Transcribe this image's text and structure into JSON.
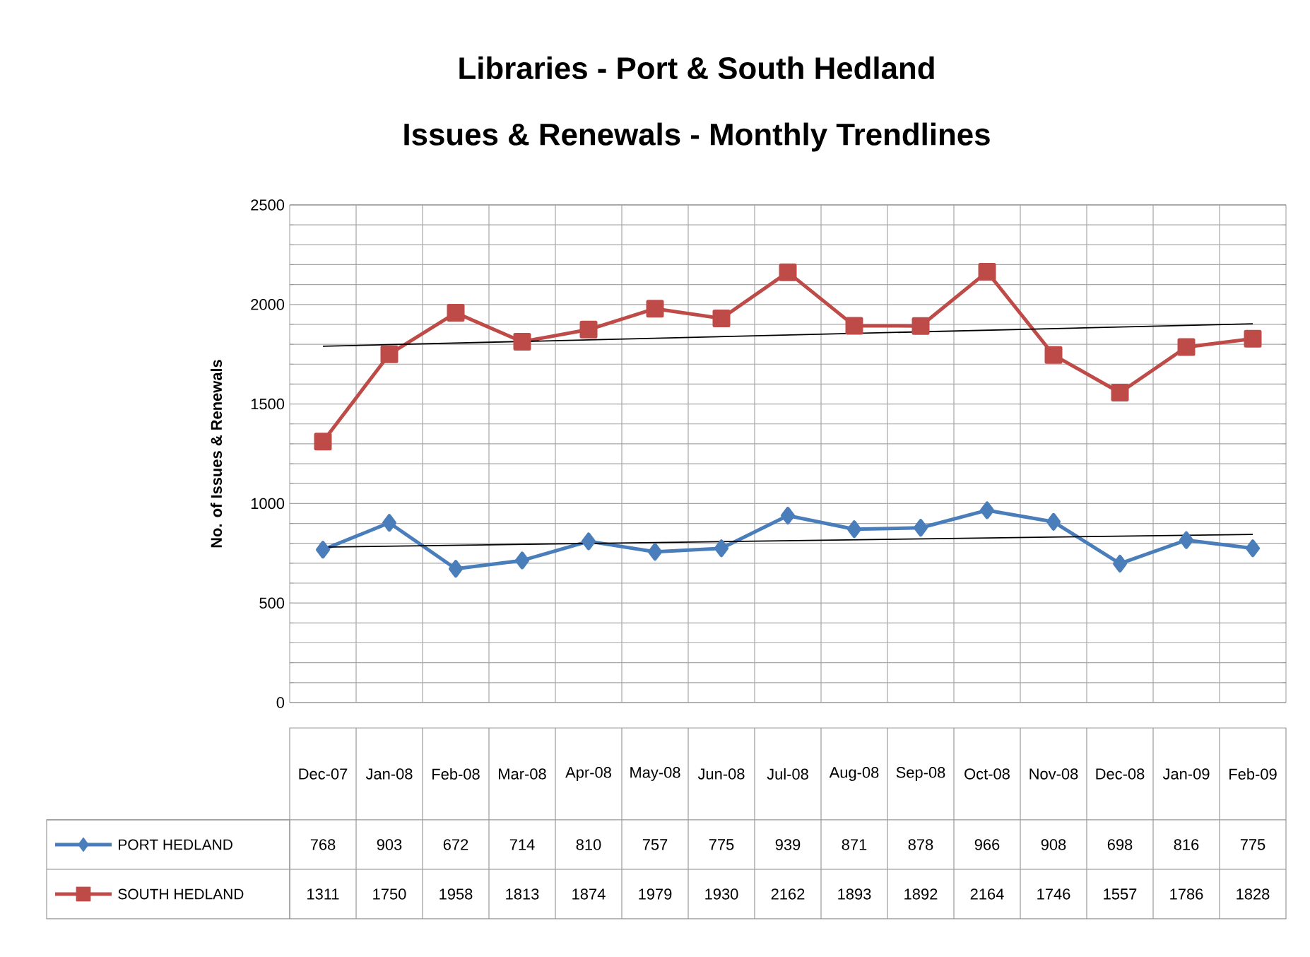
{
  "chart_data": {
    "type": "line",
    "title": "Libraries - Port & South Hedland",
    "subtitle": "Issues & Renewals - Monthly Trendlines",
    "ylabel": "No. of Issues & Renewals",
    "categories": [
      "Dec-07",
      "Jan-08",
      "Feb-08",
      "Mar-08",
      "Apr-08",
      "May-08",
      "Jun-08",
      "Jul-08",
      "Aug-08",
      "Sep-08",
      "Oct-08",
      "Nov-08",
      "Dec-08",
      "Jan-09",
      "Feb-09"
    ],
    "series": [
      {
        "name": "PORT HEDLAND",
        "color": "#4a7ebb",
        "marker": "diamond",
        "values": [
          768,
          903,
          672,
          714,
          810,
          757,
          775,
          939,
          871,
          878,
          966,
          908,
          698,
          816,
          775
        ],
        "value_labels": [
          "768",
          "903",
          "672",
          "714",
          "810",
          "757",
          "775",
          "939",
          "871",
          "878",
          "966",
          "908",
          "698",
          "816",
          "775"
        ]
      },
      {
        "name": "SOUTH HEDLAND",
        "color": "#be4b48",
        "marker": "square",
        "values": [
          1311,
          1750,
          1958,
          1813,
          1874,
          1979,
          1930,
          2162,
          1893,
          1892,
          2164,
          1746,
          1557,
          1786,
          1828
        ],
        "value_labels": [
          "1311",
          "1750",
          "1958",
          "1813",
          "1874",
          "1979",
          "1930",
          "2162",
          "1893",
          "1892",
          "2164",
          "1746",
          "1557",
          "1786",
          "1828"
        ]
      },
      {
        "type": "line",
        "color": "#000000",
        "marker": "none",
        "x": [
          "Dec-07",
          "Feb-09"
        ],
        "values": [
          781,
          845
        ]
      },
      {
        "type": "line",
        "color": "#000000",
        "marker": "none",
        "x": [
          "Dec-07",
          "Feb-09"
        ],
        "values": [
          1790,
          1903
        ]
      }
    ],
    "ylim": [
      0,
      2500
    ],
    "yticks": [
      0,
      500,
      1000,
      1500,
      2000,
      2500
    ],
    "grid": true,
    "legend": "bottom"
  }
}
